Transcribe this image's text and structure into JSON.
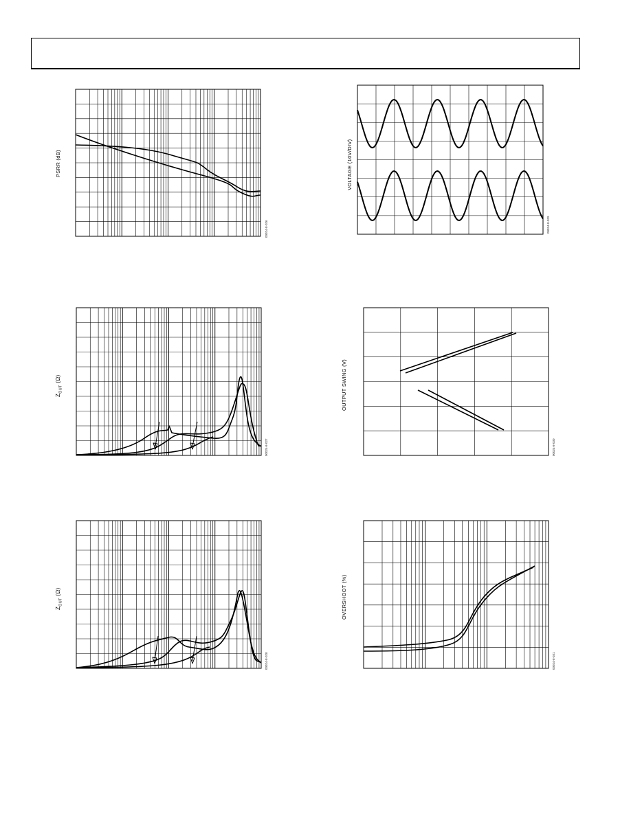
{
  "figures": [
    {
      "id": "psrr",
      "ylabel": "PSRR (dB)",
      "figure_id": "00024-8-026"
    },
    {
      "id": "voltage",
      "ylabel": "VOLTAGE (10V/DIV)",
      "figure_id": "00024-8-029"
    },
    {
      "id": "zout1",
      "ylabel_main": "Z",
      "ylabel_sub": "OUT",
      "ylabel_unit": " (Ω)",
      "figure_id": "00024-8-027"
    },
    {
      "id": "swing",
      "ylabel": "OUTPUT SWING (V)",
      "figure_id": "00024-8-030"
    },
    {
      "id": "zout2",
      "ylabel_main": "Z",
      "ylabel_sub": "OUT",
      "ylabel_unit": " (Ω)",
      "figure_id": "00024-8-028"
    },
    {
      "id": "overshoot",
      "ylabel": "OVERSHOOT (%)",
      "figure_id": "00024-8-031"
    }
  ]
}
